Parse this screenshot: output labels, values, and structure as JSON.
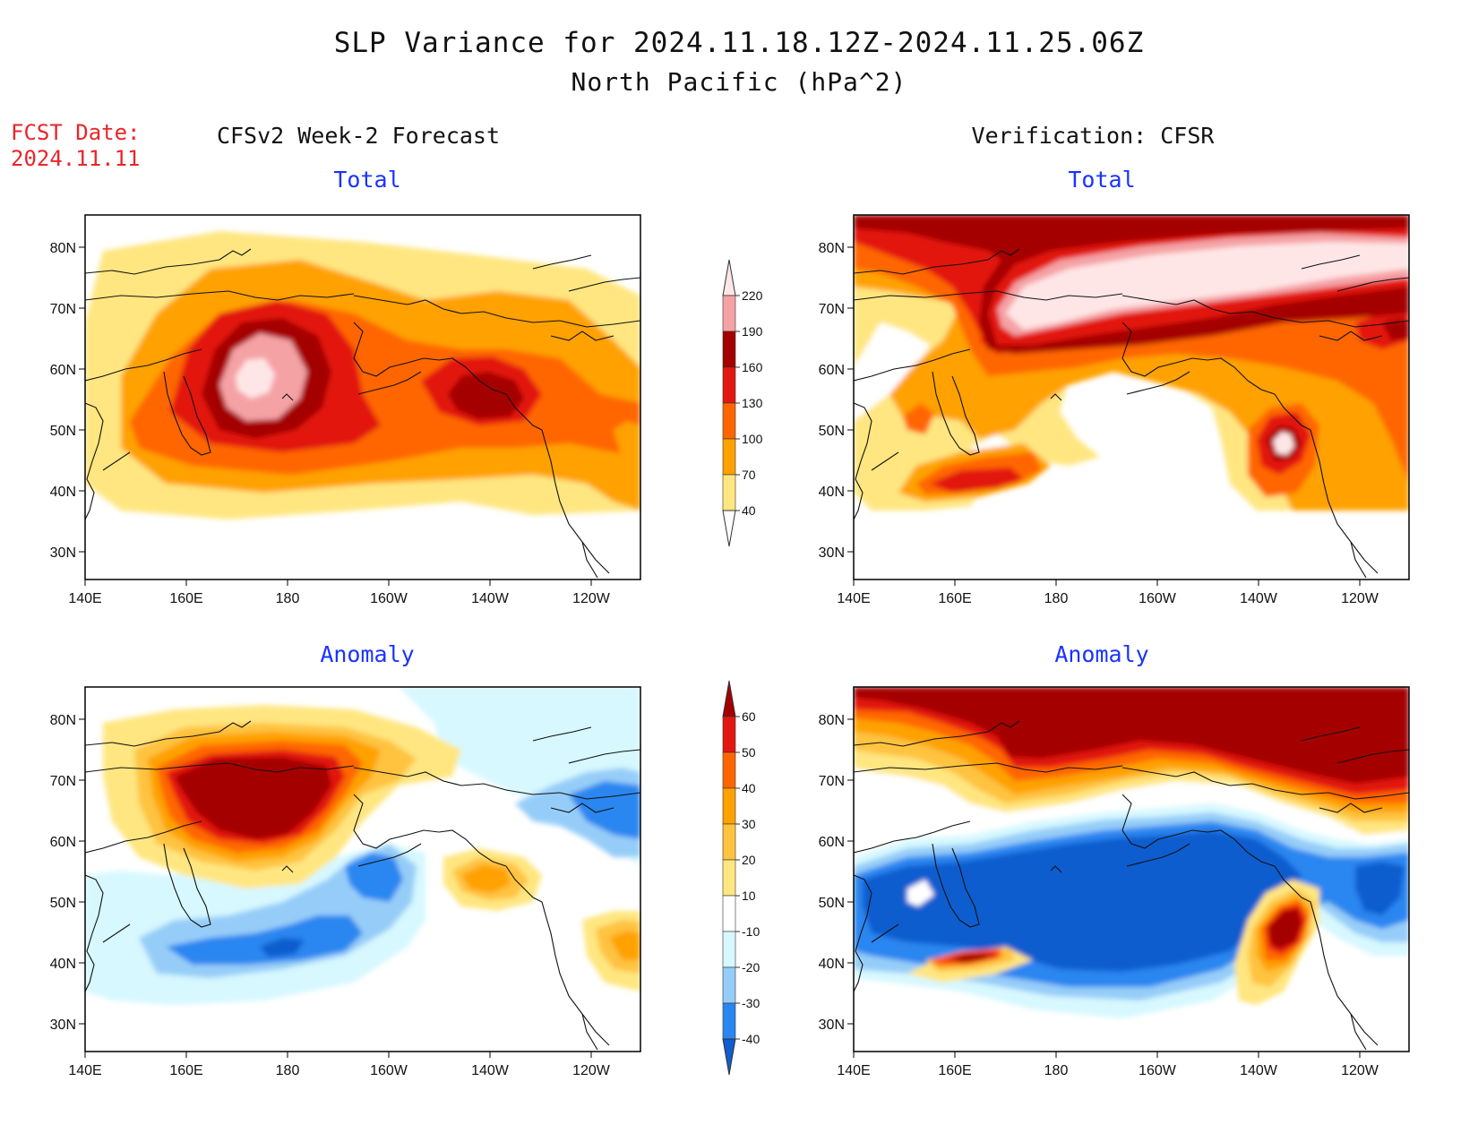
{
  "title_line1": "SLP Variance for 2024.11.18.12Z-2024.11.25.06Z",
  "title_line2": "North Pacific (hPa^2)",
  "fcst_date_label": "FCST Date:",
  "fcst_date_value": "2024.11.11",
  "left_header": "CFSv2 Week-2 Forecast",
  "right_header": "Verification: CFSR",
  "panel_total_label": "Total",
  "panel_anomaly_label": "Anomaly",
  "lat_labels": [
    "80N",
    "70N",
    "60N",
    "50N",
    "40N",
    "30N"
  ],
  "lon_labels": [
    "140E",
    "160E",
    "180",
    "160W",
    "140W",
    "120W"
  ],
  "total_colorbar": {
    "levels": [
      "40",
      "70",
      "100",
      "130",
      "160",
      "190",
      "220"
    ],
    "colors": [
      "#ffffff",
      "#ffe680",
      "#ffa100",
      "#ff6600",
      "#e2170f",
      "#a50000",
      "#f5a2a5",
      "#ffe6e6"
    ]
  },
  "anomaly_colorbar": {
    "levels": [
      "-40",
      "-30",
      "-20",
      "-10",
      "10",
      "20",
      "30",
      "40",
      "50",
      "60"
    ],
    "colors": [
      "#0f5dcf",
      "#2a86f0",
      "#96cdf8",
      "#d7f8ff",
      "#ffffff",
      "#ffe680",
      "#ffc340",
      "#ffa100",
      "#ff6600",
      "#e2170f",
      "#a50000"
    ]
  }
}
